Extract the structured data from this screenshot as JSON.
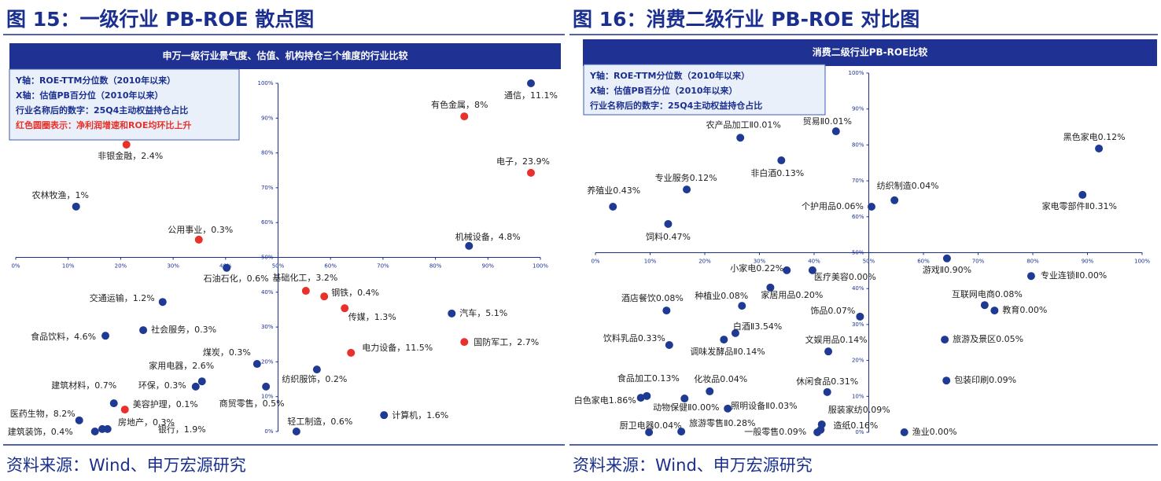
{
  "chart_data": [
    {
      "type": "scatter",
      "figure_title": "图 15：一级行业 PB-ROE 散点图",
      "title": "申万一级行业景气度、估值、机构持仓三个维度的行业比较",
      "notes": [
        {
          "text": "Y轴：ROE-TTM分位数（2010年以来）",
          "color": "#1a2f8f"
        },
        {
          "text": "X轴：估值PB百分位（2010年以来）",
          "color": "#1a2f8f"
        },
        {
          "text": "行业名称后的数字：25Q4主动权益持仓占比",
          "color": "#1a2f8f"
        },
        {
          "text": "红色圆圈表示：净利润增速和ROE均环比上升",
          "color": "#e8312a"
        }
      ],
      "labels": [
        "通信，11.1%",
        "有色金属，8%",
        "非银金融，2.4%",
        "电子，23.9%",
        "农林牧渔，1%",
        "公用事业，0.3%",
        "机械设备，4.8%",
        "石油石化，0.6%",
        "基础化工，3.2%",
        "钢铁，0.4%",
        "传媒，1.3%",
        "交通运输，1.2%",
        "汽车，5.1%",
        "社会服务，0.3%",
        "食品饮料，4.6%",
        "国防军工，2.7%",
        "电力设备，11.5%",
        "煤炭，0.3%",
        "纺织服饰，0.2%",
        "家用电器，2.6%",
        "环保，0.3%",
        "商贸零售，0.5%",
        "建筑材料，0.7%",
        "美容护理，0.1%",
        "计算机，1.6%",
        "医药生物，8.2%",
        "房地产，0.3%",
        "建筑装饰，0.4%",
        "银行，1.9%",
        "轻工制造，0.6%"
      ],
      "x": [
        98.2,
        85.5,
        21.1,
        98.2,
        11.5,
        34.9,
        86.4,
        40.2,
        55.3,
        58.8,
        62.7,
        28,
        83.1,
        24.3,
        17.1,
        85.5,
        63.9,
        46,
        57.4,
        35.5,
        34.3,
        47.7,
        18.7,
        20.8,
        70.2,
        12.1,
        16.5,
        15.1,
        17.5,
        53.5
      ],
      "y": [
        100,
        90.5,
        82.4,
        74.3,
        64.6,
        55.1,
        53.3,
        47,
        40.4,
        38.8,
        35.4,
        37.2,
        33.9,
        29.1,
        27.5,
        25.7,
        22.6,
        19.4,
        17.8,
        14.4,
        12.9,
        12.9,
        8.1,
        6.3,
        4.7,
        3.2,
        0.7,
        0,
        0.7,
        0
      ],
      "colors": [
        "#1f3a93",
        "#e8312a",
        "#e8312a",
        "#e8312a",
        "#1f3a93",
        "#e8312a",
        "#1f3a93",
        "#1f3a93",
        "#e8312a",
        "#e8312a",
        "#e8312a",
        "#1f3a93",
        "#1f3a93",
        "#1f3a93",
        "#1f3a93",
        "#e8312a",
        "#e8312a",
        "#1f3a93",
        "#1f3a93",
        "#1f3a93",
        "#1f3a93",
        "#1f3a93",
        "#1f3a93",
        "#e8312a",
        "#1f3a93",
        "#1f3a93",
        "#1f3a93",
        "#1f3a93",
        "#1f3a93",
        "#1f3a93"
      ],
      "xlim": [
        0,
        100
      ],
      "ylim": [
        0,
        100
      ],
      "xticks": [
        {
          "value": 0,
          "label": "0%"
        },
        {
          "value": 10,
          "label": "10%"
        },
        {
          "value": 20,
          "label": "20%"
        },
        {
          "value": 30,
          "label": "30%"
        },
        {
          "value": 40,
          "label": "40%"
        },
        {
          "value": 50,
          "label": "50%"
        },
        {
          "value": 60,
          "label": "60%"
        },
        {
          "value": 70,
          "label": "70%"
        },
        {
          "value": 80,
          "label": "80%"
        },
        {
          "value": 90,
          "label": "90%"
        },
        {
          "value": 100,
          "label": "100%"
        }
      ],
      "yticks": [
        {
          "value": 0,
          "label": "0%"
        },
        {
          "value": 10,
          "label": "10%"
        },
        {
          "value": 20,
          "label": "20%"
        },
        {
          "value": 30,
          "label": "30%"
        },
        {
          "value": 40,
          "label": "40%"
        },
        {
          "value": 50,
          "label": "50%"
        },
        {
          "value": 60,
          "label": "60%"
        },
        {
          "value": 70,
          "label": "70%"
        },
        {
          "value": 80,
          "label": "80%"
        },
        {
          "value": 90,
          "label": "90%"
        },
        {
          "value": 100,
          "label": "100%"
        }
      ],
      "source": "资料来源：Wind、申万宏源研究"
    },
    {
      "type": "scatter",
      "figure_title": "图 16：消费二级行业 PB-ROE 对比图",
      "title": "消费二级行业PB-ROE比较",
      "notes": [
        {
          "text": "Y轴：ROE-TTM分位数（2010年以来）",
          "color": "#1a2f8f"
        },
        {
          "text": "X轴：估值PB百分位（2010年以来）",
          "color": "#1a2f8f"
        },
        {
          "text": "行业名称后的数字：25Q4主动权益持仓占比",
          "color": "#1a2f8f"
        }
      ],
      "labels": [
        "黑色家电0.12%",
        "农产品加工Ⅱ0.01%",
        "贸易Ⅱ0.01%",
        "非白酒0.13%",
        "专业服务0.12%",
        "纺织制造0.04%",
        "家电零部件Ⅱ0.31%",
        "养殖业0.43%",
        "个护用品0.06%",
        "饲料0.47%",
        "游戏Ⅱ0.90%",
        "小家电0.22%",
        "医疗美容0.00%",
        "专业连锁Ⅱ0.00%",
        "家居用品0.20%",
        "种植业0.08%",
        "酒店餐饮0.08%",
        "互联网电商0.08%",
        "教育0.00%",
        "饰品0.07%",
        "白酒Ⅱ3.54%",
        "调味发酵品Ⅱ0.14%",
        "饮料乳品0.33%",
        "旅游及景区0.05%",
        "文娱用品0.14%",
        "包装印刷0.09%",
        "化妆品0.04%",
        "休闲食品0.31%",
        "白色家电1.86%",
        "食品加工0.13%",
        "动物保健Ⅱ0.00%",
        "照明设备Ⅱ0.03%",
        "服装家纺0.09%",
        "造纸0.16%",
        "厨卫电器0.04%",
        "旅游零售Ⅱ0.28%",
        "一般零售0.09%",
        "渔业0.00%"
      ],
      "x": [
        92.1,
        26.5,
        44,
        34,
        16.7,
        54.7,
        89.1,
        3.2,
        50.5,
        13.3,
        64.3,
        35,
        39.7,
        79.7,
        32,
        26.8,
        13,
        71.2,
        73,
        48.4,
        25.6,
        23.5,
        13.5,
        63.9,
        42.6,
        64.2,
        20.9,
        42.4,
        8.3,
        9.4,
        16.3,
        24.2,
        41.4,
        41.2,
        9.8,
        15.7,
        40.6,
        56.5
      ],
      "y": [
        79,
        82,
        83.8,
        75.7,
        67.6,
        64.6,
        66.1,
        62.8,
        62.8,
        58,
        48.4,
        45.1,
        45.1,
        43.5,
        40.3,
        35.2,
        33.9,
        35.4,
        33.9,
        32.2,
        27.6,
        25.8,
        24.3,
        25.8,
        22.5,
        14.4,
        11.4,
        11.2,
        9.6,
        10.1,
        9.4,
        6.6,
        2.2,
        0.7,
        0,
        0.2,
        0,
        0
      ],
      "color": "#1f3a93",
      "xlim": [
        0,
        100
      ],
      "ylim": [
        0,
        100
      ],
      "xticks": [
        {
          "value": 0,
          "label": "0%"
        },
        {
          "value": 10,
          "label": "10%"
        },
        {
          "value": 20,
          "label": "20%"
        },
        {
          "value": 30,
          "label": "30%"
        },
        {
          "value": 40,
          "label": "40%"
        },
        {
          "value": 50,
          "label": "50%"
        },
        {
          "value": 60,
          "label": "60%"
        },
        {
          "value": 70,
          "label": "70%"
        },
        {
          "value": 80,
          "label": "80%"
        },
        {
          "value": 90,
          "label": "90%"
        },
        {
          "value": 100,
          "label": "100%"
        }
      ],
      "yticks": [
        {
          "value": 0,
          "label": "0%"
        },
        {
          "value": 10,
          "label": "10%"
        },
        {
          "value": 20,
          "label": "20%"
        },
        {
          "value": 30,
          "label": "30%"
        },
        {
          "value": 40,
          "label": "40%"
        },
        {
          "value": 50,
          "label": "50%"
        },
        {
          "value": 60,
          "label": "60%"
        },
        {
          "value": 70,
          "label": "70%"
        },
        {
          "value": 80,
          "label": "80%"
        },
        {
          "value": 90,
          "label": "90%"
        },
        {
          "value": 100,
          "label": "100%"
        }
      ],
      "source": "资料来源：Wind、申万宏源研究"
    }
  ]
}
